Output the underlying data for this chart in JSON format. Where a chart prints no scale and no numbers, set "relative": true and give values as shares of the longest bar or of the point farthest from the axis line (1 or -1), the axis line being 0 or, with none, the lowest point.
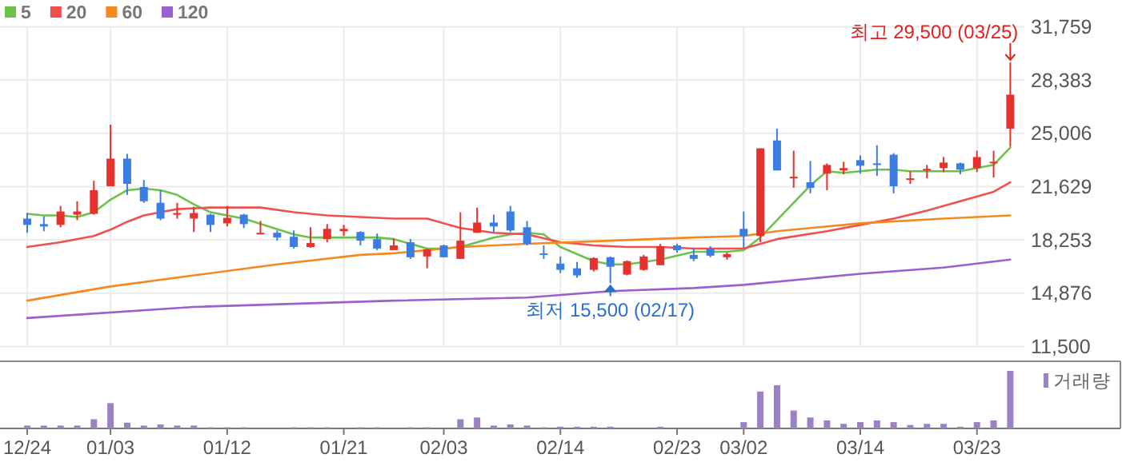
{
  "chart_data": [
    {
      "type": "candlestick",
      "categories": [
        null,
        null,
        null,
        null,
        null,
        null,
        null,
        null,
        null,
        null,
        null,
        null,
        null,
        null,
        null,
        null,
        null,
        null,
        null,
        null,
        null,
        null,
        null,
        null,
        null,
        null,
        null,
        null,
        null,
        null,
        null,
        null,
        null,
        null,
        null,
        null,
        null,
        null,
        null,
        null,
        null,
        null,
        null,
        null,
        null,
        null,
        null,
        null,
        null,
        null,
        null,
        null,
        null,
        null,
        null,
        null,
        null,
        null,
        null,
        null
      ],
      "ohlc": [
        [
          19600,
          19950,
          18700,
          19200
        ],
        [
          19250,
          19750,
          18800,
          19100
        ],
        [
          19200,
          20400,
          19050,
          20050
        ],
        [
          19850,
          20700,
          19500,
          20050
        ],
        [
          19900,
          22000,
          19850,
          21400
        ],
        [
          21650,
          25550,
          21650,
          23400
        ],
        [
          23400,
          23700,
          21100,
          21800
        ],
        [
          21600,
          22050,
          20600,
          20700
        ],
        [
          20600,
          21400,
          19500,
          19600
        ],
        [
          19900,
          20600,
          19600,
          19950
        ],
        [
          19600,
          20350,
          18750,
          19950
        ],
        [
          19850,
          19900,
          18750,
          19200
        ],
        [
          19300,
          20400,
          19100,
          19650
        ],
        [
          19850,
          19900,
          19000,
          19250
        ],
        [
          18600,
          19450,
          18600,
          18700
        ],
        [
          18700,
          18850,
          18200,
          18400
        ],
        [
          18450,
          18850,
          17700,
          17800
        ],
        [
          17800,
          19050,
          17750,
          18050
        ],
        [
          18300,
          19250,
          18100,
          18950
        ],
        [
          18800,
          19200,
          18500,
          18950
        ],
        [
          18750,
          18800,
          17900,
          18200
        ],
        [
          18300,
          18650,
          17600,
          17700
        ],
        [
          17600,
          18350,
          17600,
          17900
        ],
        [
          18100,
          18300,
          17050,
          17150
        ],
        [
          17200,
          17700,
          16450,
          17650
        ],
        [
          17900,
          17950,
          17150,
          17150
        ],
        [
          17050,
          20000,
          17050,
          18200
        ],
        [
          18700,
          20300,
          18700,
          19350
        ],
        [
          19350,
          19850,
          18700,
          19100
        ],
        [
          20050,
          20400,
          18750,
          18850
        ],
        [
          19050,
          19450,
          17900,
          18000
        ],
        [
          17400,
          17900,
          17050,
          17350
        ],
        [
          16750,
          17200,
          16150,
          16350
        ],
        [
          16450,
          16850,
          15850,
          16000
        ],
        [
          16350,
          17150,
          16250,
          17100
        ],
        [
          17150,
          17200,
          15500,
          16550
        ],
        [
          16050,
          16950,
          16000,
          16900
        ],
        [
          16350,
          17300,
          16300,
          17200
        ],
        [
          16650,
          18000,
          16650,
          17850
        ],
        [
          17900,
          18000,
          17450,
          17600
        ],
        [
          17300,
          17750,
          16900,
          17050
        ],
        [
          17700,
          17850,
          17150,
          17250
        ],
        [
          17150,
          17450,
          17000,
          17350
        ],
        [
          18950,
          20050,
          17750,
          18500
        ],
        [
          18500,
          24050,
          18100,
          24050
        ],
        [
          24550,
          25300,
          22650,
          22650
        ],
        [
          22150,
          23900,
          21550,
          22250
        ],
        [
          21900,
          23250,
          21200,
          21550
        ],
        [
          22450,
          23100,
          21400,
          23000
        ],
        [
          22650,
          23200,
          22400,
          22800
        ],
        [
          23300,
          23600,
          22450,
          22950
        ],
        [
          23100,
          24250,
          22300,
          23000
        ],
        [
          23650,
          23750,
          21200,
          21650
        ],
        [
          22050,
          22600,
          21800,
          22150
        ],
        [
          22650,
          23000,
          22150,
          22750
        ],
        [
          22800,
          23500,
          22550,
          23150
        ],
        [
          23100,
          23150,
          22400,
          22700
        ],
        [
          22800,
          23900,
          22550,
          23500
        ],
        [
          23100,
          23900,
          22200,
          23200
        ],
        [
          25300,
          29500,
          24150,
          27450
        ]
      ],
      "colors": [
        "#3b7de0",
        "#3b7de0",
        "#e5322d",
        "#e5322d",
        "#e5322d",
        "#e5322d",
        "#3b7de0",
        "#3b7de0",
        "#3b7de0",
        "#e5322d",
        "#e5322d",
        "#3b7de0",
        "#e5322d",
        "#3b7de0",
        "#e5322d",
        "#3b7de0",
        "#3b7de0",
        "#e5322d",
        "#e5322d",
        "#e5322d",
        "#3b7de0",
        "#3b7de0",
        "#e5322d",
        "#3b7de0",
        "#e5322d",
        "#3b7de0",
        "#e5322d",
        "#e5322d",
        "#3b7de0",
        "#3b7de0",
        "#3b7de0",
        "#3b7de0",
        "#3b7de0",
        "#3b7de0",
        "#e5322d",
        "#3b7de0",
        "#e5322d",
        "#e5322d",
        "#e5322d",
        "#3b7de0",
        "#3b7de0",
        "#3b7de0",
        "#e5322d",
        "#3b7de0",
        "#e5322d",
        "#3b7de0",
        "#e5322d",
        "#3b7de0",
        "#e5322d",
        "#e5322d",
        "#3b7de0",
        "#3b7de0",
        "#3b7de0",
        "#e5322d",
        "#e5322d",
        "#e5322d",
        "#3b7de0",
        "#e5322d",
        "#e5322d",
        "#e5322d"
      ],
      "series": [
        {
          "name": "5",
          "type": "line",
          "color": "#6cc24a",
          "values": [
            19900,
            19800,
            19800,
            19700,
            20000,
            20800,
            21400,
            21500,
            21400,
            21100,
            20500,
            20000,
            null,
            19600,
            null,
            null,
            18600,
            18400,
            null,
            18400,
            null,
            18400,
            18300,
            null,
            17700,
            17700,
            17800,
            null,
            18400,
            18600,
            18700,
            18600,
            17800,
            null,
            16900,
            16700,
            16700,
            null,
            17000,
            null,
            17500,
            null,
            17500,
            17600,
            18400,
            19500,
            20600,
            21700,
            22600,
            22500,
            22600,
            22700,
            22700,
            22600,
            22600,
            22600,
            22600,
            22800,
            23000,
            24100
          ]
        },
        {
          "name": "20",
          "type": "line",
          "color": "#f0504f",
          "values": [
            17800,
            null,
            18100,
            null,
            18500,
            18900,
            19400,
            19800,
            20000,
            20200,
            null,
            20300,
            null,
            null,
            20300,
            null,
            20000,
            null,
            19800,
            null,
            19700,
            null,
            19600,
            null,
            19600,
            null,
            19000,
            null,
            18700,
            null,
            18600,
            null,
            18100,
            null,
            17900,
            null,
            17800,
            null,
            17800,
            null,
            17700,
            null,
            17700,
            17700,
            null,
            18300,
            null,
            null,
            18800,
            null,
            19200,
            null,
            19600,
            null,
            20100,
            null,
            20700,
            null,
            21300,
            21900
          ]
        },
        {
          "name": "60",
          "type": "line",
          "color": "#f5891f",
          "values": [
            14400,
            null,
            null,
            null,
            null,
            15300,
            null,
            null,
            null,
            null,
            16000,
            null,
            null,
            null,
            null,
            16700,
            null,
            null,
            null,
            null,
            17300,
            null,
            17400,
            null,
            null,
            null,
            17800,
            null,
            null,
            null,
            18000,
            null,
            null,
            null,
            null,
            18200,
            null,
            null,
            null,
            null,
            18400,
            null,
            null,
            18500,
            null,
            18800,
            null,
            null,
            null,
            null,
            19300,
            null,
            null,
            null,
            null,
            19600,
            null,
            null,
            null,
            19800
          ]
        },
        {
          "name": "120",
          "type": "line",
          "color": "#9b5fce",
          "values": [
            13300,
            null,
            null,
            null,
            null,
            null,
            null,
            null,
            null,
            null,
            14000,
            null,
            null,
            null,
            null,
            null,
            null,
            null,
            null,
            null,
            null,
            null,
            14400,
            null,
            null,
            null,
            null,
            null,
            null,
            null,
            14600,
            null,
            null,
            null,
            null,
            15000,
            null,
            null,
            null,
            null,
            15200,
            null,
            null,
            15400,
            null,
            null,
            null,
            null,
            null,
            null,
            16100,
            null,
            null,
            null,
            null,
            16500,
            null,
            null,
            null,
            17000
          ]
        }
      ],
      "ylim": [
        11500,
        31759
      ],
      "yticks": [
        {
          "value": 11500,
          "label": "11,500"
        },
        {
          "value": 14876,
          "label": "14,876"
        },
        {
          "value": 18253,
          "label": "18,253"
        },
        {
          "value": 21629,
          "label": "21,629"
        },
        {
          "value": 25006,
          "label": "25,006"
        },
        {
          "value": 28383,
          "label": "28,383"
        },
        {
          "value": 31759,
          "label": "31,759"
        }
      ],
      "grid": true,
      "legend": "top left",
      "tick_labels": "y",
      "annotations": [
        "최고 29,500 (03/25)",
        "최저 15,500 (02/17)"
      ]
    },
    {
      "type": "bar",
      "relative": true,
      "categories": [
        "12/24",
        null,
        null,
        null,
        null,
        "01/03",
        null,
        null,
        null,
        null,
        null,
        null,
        "01/12",
        null,
        null,
        null,
        null,
        null,
        null,
        "01/21",
        null,
        null,
        null,
        null,
        null,
        "02/03",
        null,
        null,
        null,
        null,
        null,
        null,
        "02/14",
        null,
        null,
        null,
        null,
        null,
        null,
        "02/23",
        null,
        null,
        null,
        "03/02",
        null,
        null,
        null,
        null,
        null,
        null,
        "03/14",
        null,
        null,
        null,
        null,
        null,
        null,
        "03/23",
        null,
        null
      ],
      "series": [
        {
          "name": "거래량",
          "color": "#9b82c4",
          "values": [
            0.05,
            0.05,
            0.05,
            0.05,
            0.16,
            0.44,
            0.1,
            0.05,
            0.07,
            0.05,
            0.05,
            0.02,
            0.02,
            0.02,
            0,
            0,
            0.02,
            0.02,
            0.02,
            0,
            0.02,
            0.02,
            0,
            0.02,
            0.02,
            0,
            0.16,
            0.19,
            0.05,
            0.07,
            0.05,
            0.02,
            0.03,
            0.03,
            0.03,
            0.03,
            0,
            0,
            0.03,
            0,
            0,
            0,
            0,
            0.11,
            0.64,
            0.75,
            0.31,
            0.19,
            0.14,
            0.08,
            0.11,
            0.14,
            0.11,
            0.06,
            0.08,
            0.08,
            0.03,
            0.11,
            0.14,
            1
          ]
        }
      ],
      "legend": "top right",
      "tick_labels": "x"
    }
  ]
}
